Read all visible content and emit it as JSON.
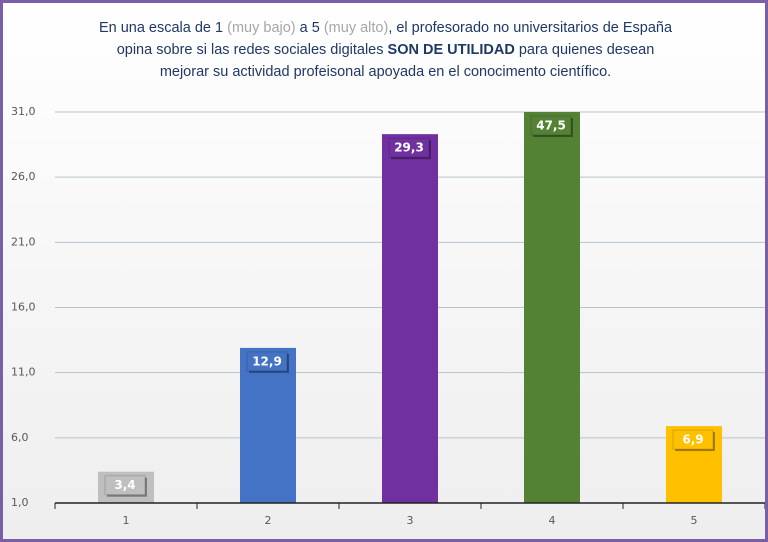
{
  "chart_data": {
    "type": "bar",
    "title": [
      {
        "text": "En una escala de 1 ",
        "style": "normal"
      },
      {
        "text": "(muy bajo)",
        "style": "muted"
      },
      {
        "text": " a 5 ",
        "style": "normal"
      },
      {
        "text": "(muy alto)",
        "style": "muted"
      },
      {
        "text": ", el profesorado no universitarios de España opina sobre si las redes sociales digitales ",
        "style": "normal"
      },
      {
        "text": "SON DE UTILIDAD",
        "style": "bold"
      },
      {
        "text": " para quienes desean mejorar su actividad profeisonal apoyada en el conocimento científico.",
        "style": "normal"
      }
    ],
    "categories": [
      "1",
      "2",
      "3",
      "4",
      "5"
    ],
    "values": [
      3.4,
      12.9,
      29.3,
      47.5,
      6.9
    ],
    "value_labels": [
      "3,4",
      "12,9",
      "29,3",
      "47,5",
      "6,9"
    ],
    "colors": [
      "#bfbfbf",
      "#4472c4",
      "#7030a0",
      "#548235",
      "#ffc000"
    ],
    "ylim": [
      1,
      31
    ],
    "yticks": [
      {
        "value": 1,
        "label": "1,0"
      },
      {
        "value": 6,
        "label": "6,0"
      },
      {
        "value": 11,
        "label": "11,0"
      },
      {
        "value": 16,
        "label": "16,0"
      },
      {
        "value": 21,
        "label": "21,0"
      },
      {
        "value": 26,
        "label": "26,0"
      },
      {
        "value": 31,
        "label": "31,0"
      }
    ],
    "grid": true
  }
}
